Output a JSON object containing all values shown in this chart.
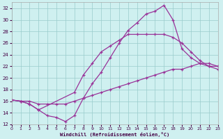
{
  "xlabel": "Windchill (Refroidissement éolien,°C)",
  "bg_color": "#cff0f0",
  "grid_color": "#99cccc",
  "line_color": "#993399",
  "xmin": 0,
  "xmax": 23,
  "ymin": 12,
  "ymax": 33,
  "yticks": [
    12,
    14,
    16,
    18,
    20,
    22,
    24,
    26,
    28,
    30,
    32
  ],
  "xticks": [
    0,
    1,
    2,
    3,
    4,
    5,
    6,
    7,
    8,
    9,
    10,
    11,
    12,
    13,
    14,
    15,
    16,
    17,
    18,
    19,
    20,
    21,
    22,
    23
  ],
  "line1_x": [
    0,
    1,
    2,
    3,
    4,
    5,
    6,
    7,
    8,
    9,
    10,
    11,
    12,
    13,
    14,
    15,
    16,
    17,
    18,
    19,
    20,
    21,
    22,
    23
  ],
  "line1_y": [
    16.2,
    16.0,
    15.5,
    14.5,
    13.5,
    13.2,
    12.5,
    13.5,
    16.5,
    19.0,
    21.0,
    23.5,
    26.0,
    28.2,
    29.5,
    31.0,
    31.5,
    32.5,
    30.0,
    25.0,
    23.5,
    22.5,
    22.0,
    22.0
  ],
  "line2_x": [
    0,
    1,
    2,
    3,
    7,
    8,
    9,
    10,
    11,
    12,
    13,
    14,
    15,
    16,
    17,
    18,
    19,
    20,
    21,
    22,
    23
  ],
  "line2_y": [
    16.2,
    16.0,
    15.5,
    14.5,
    17.5,
    20.5,
    22.5,
    24.5,
    25.5,
    26.5,
    27.5,
    27.5,
    27.5,
    27.5,
    27.5,
    27.0,
    26.0,
    24.5,
    23.0,
    22.0,
    21.5
  ],
  "line3_x": [
    0,
    1,
    2,
    3,
    4,
    5,
    6,
    7,
    8,
    9,
    10,
    11,
    12,
    13,
    14,
    15,
    16,
    17,
    18,
    19,
    20,
    21,
    22,
    23
  ],
  "line3_y": [
    16.2,
    16.0,
    16.0,
    15.5,
    15.5,
    15.5,
    15.5,
    16.0,
    16.5,
    17.0,
    17.5,
    18.0,
    18.5,
    19.0,
    19.5,
    20.0,
    20.5,
    21.0,
    21.5,
    21.5,
    22.0,
    22.5,
    22.5,
    22.0
  ]
}
